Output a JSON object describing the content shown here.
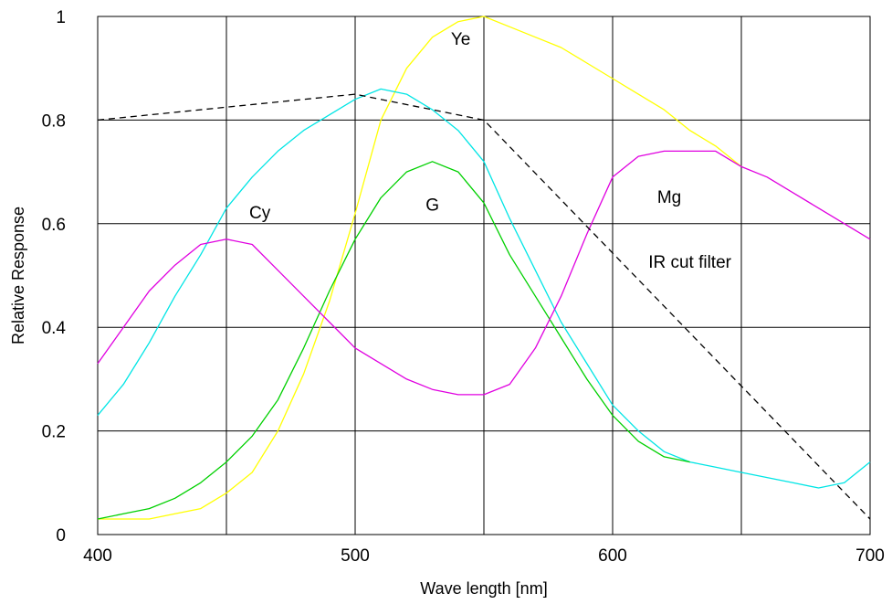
{
  "chart_data": {
    "type": "line",
    "title": "",
    "xlabel": "Wave length [nm]",
    "ylabel": "Relative Response",
    "xlim": [
      400,
      700
    ],
    "ylim": [
      0,
      1
    ],
    "x_ticks": [
      400,
      500,
      600,
      700
    ],
    "y_ticks": [
      0,
      0.2,
      0.4,
      0.6,
      0.8,
      1
    ],
    "x_tick_labels": [
      "400",
      "500",
      "600",
      "700"
    ],
    "y_tick_labels": [
      "0",
      "0.2",
      "0.4",
      "0.6",
      "0.8",
      "1"
    ],
    "grid": true,
    "x_gridlines": [
      450,
      500,
      550,
      600,
      650
    ],
    "y_gridlines": [
      0.2,
      0.4,
      0.6,
      0.8
    ],
    "series": [
      {
        "name": "Ye",
        "color": "#ffff00",
        "dash": "solid",
        "x": [
          400,
          410,
          420,
          430,
          440,
          450,
          460,
          470,
          480,
          490,
          500,
          510,
          520,
          530,
          540,
          550,
          560,
          570,
          580,
          590,
          600,
          610,
          620,
          630,
          640,
          650
        ],
        "y": [
          0.03,
          0.03,
          0.03,
          0.04,
          0.05,
          0.08,
          0.12,
          0.2,
          0.31,
          0.45,
          0.62,
          0.8,
          0.9,
          0.96,
          0.99,
          1.0,
          0.98,
          0.96,
          0.94,
          0.91,
          0.88,
          0.85,
          0.82,
          0.78,
          0.75,
          0.71
        ]
      },
      {
        "name": "Cy",
        "color": "#00e5e5",
        "dash": "solid",
        "x": [
          400,
          410,
          420,
          430,
          440,
          450,
          460,
          470,
          480,
          490,
          500,
          510,
          520,
          530,
          540,
          550,
          560,
          570,
          580,
          590,
          600,
          610,
          620,
          630,
          640,
          650,
          660,
          670,
          680,
          690,
          700
        ],
        "y": [
          0.23,
          0.29,
          0.37,
          0.46,
          0.54,
          0.63,
          0.69,
          0.74,
          0.78,
          0.81,
          0.84,
          0.86,
          0.85,
          0.82,
          0.78,
          0.72,
          0.61,
          0.51,
          0.41,
          0.33,
          0.25,
          0.2,
          0.16,
          0.14,
          0.13,
          0.12,
          0.11,
          0.1,
          0.09,
          0.1,
          0.14
        ]
      },
      {
        "name": "G",
        "color": "#00d000",
        "dash": "solid",
        "x": [
          400,
          410,
          420,
          430,
          440,
          450,
          460,
          470,
          480,
          490,
          500,
          510,
          520,
          530,
          540,
          550,
          560,
          570,
          580,
          590,
          600,
          610,
          620,
          630
        ],
        "y": [
          0.03,
          0.04,
          0.05,
          0.07,
          0.1,
          0.14,
          0.19,
          0.26,
          0.36,
          0.47,
          0.57,
          0.65,
          0.7,
          0.72,
          0.7,
          0.64,
          0.54,
          0.46,
          0.38,
          0.3,
          0.23,
          0.18,
          0.15,
          0.14
        ]
      },
      {
        "name": "Mg",
        "color": "#e000e0",
        "dash": "solid",
        "x": [
          400,
          410,
          420,
          430,
          440,
          450,
          460,
          470,
          480,
          490,
          500,
          510,
          520,
          530,
          540,
          550,
          560,
          570,
          580,
          590,
          600,
          610,
          620,
          630,
          640,
          650,
          660,
          670,
          680,
          690,
          700
        ],
        "y": [
          0.33,
          0.4,
          0.47,
          0.52,
          0.56,
          0.57,
          0.56,
          0.51,
          0.46,
          0.41,
          0.36,
          0.33,
          0.3,
          0.28,
          0.27,
          0.27,
          0.29,
          0.36,
          0.46,
          0.58,
          0.69,
          0.73,
          0.74,
          0.74,
          0.74,
          0.71,
          0.69,
          0.66,
          0.63,
          0.6,
          0.57
        ]
      },
      {
        "name": "IR cut filter",
        "color": "#000000",
        "dash": "dashed",
        "x": [
          400,
          500,
          550,
          700
        ],
        "y": [
          0.8,
          0.85,
          0.8,
          0.03
        ]
      }
    ],
    "annotations": [
      {
        "text": "Ye",
        "x": 541,
        "y": 0.945
      },
      {
        "text": "Cy",
        "x": 463,
        "y": 0.61
      },
      {
        "text": "G",
        "x": 530,
        "y": 0.625
      },
      {
        "text": "Mg",
        "x": 622,
        "y": 0.64
      },
      {
        "text": "IR cut filter",
        "x": 630,
        "y": 0.515
      }
    ]
  }
}
